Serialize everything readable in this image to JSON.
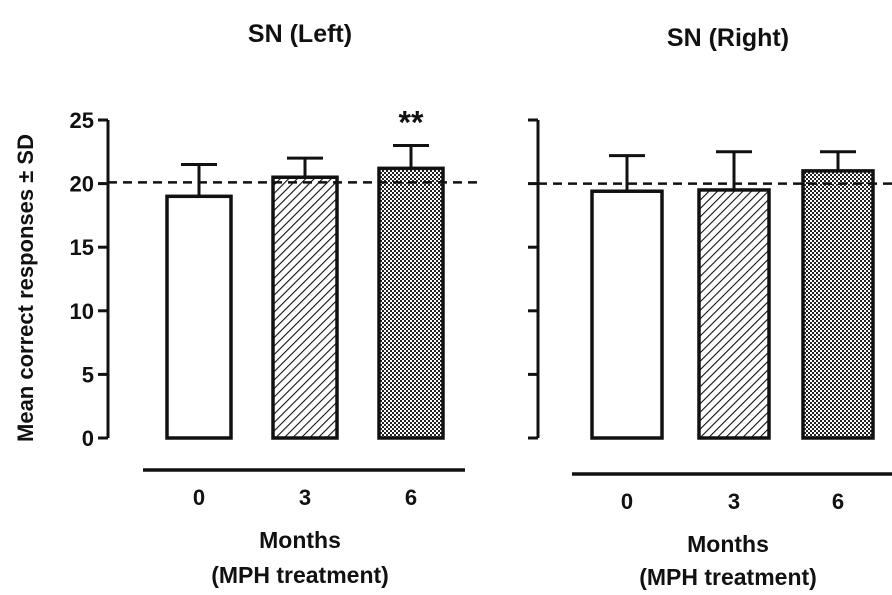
{
  "figure": {
    "ylabel": "Mean correct responses ± SD",
    "xlabel_line1": "Months",
    "xlabel_line2": "(MPH treatment)"
  },
  "chart_data": [
    {
      "type": "bar",
      "title": "SN (Left)",
      "categories": [
        "0",
        "3",
        "6"
      ],
      "values": [
        19.0,
        20.5,
        21.2
      ],
      "errors": [
        2.5,
        1.5,
        1.8
      ],
      "ylim": [
        0,
        25
      ],
      "yticks": [
        "0",
        "5",
        "10",
        "15",
        "20",
        "25"
      ],
      "reference_line": 20.1,
      "annotations": [
        {
          "category": "6",
          "text": "**"
        }
      ],
      "fills": [
        "plain",
        "hatched",
        "checkered"
      ]
    },
    {
      "type": "bar",
      "title": "SN (Right)",
      "categories": [
        "0",
        "3",
        "6"
      ],
      "values": [
        19.4,
        19.5,
        21.0
      ],
      "errors": [
        2.8,
        3.0,
        1.5
      ],
      "ylim": [
        0,
        25
      ],
      "reference_line": 20.0,
      "fills": [
        "plain",
        "hatched",
        "checkered"
      ]
    }
  ]
}
